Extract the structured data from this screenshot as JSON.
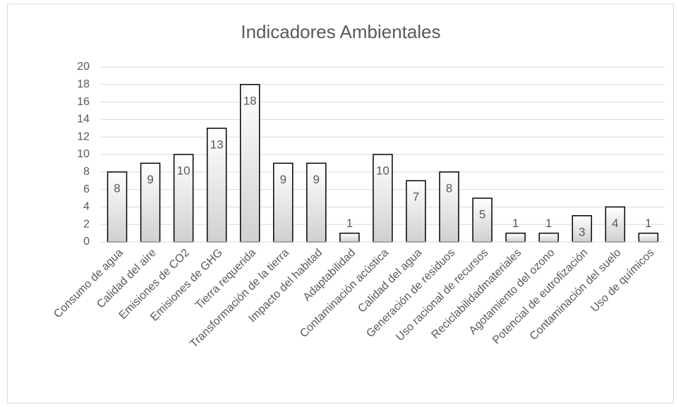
{
  "chart_data": {
    "type": "bar",
    "title": "Indicadores Ambientales",
    "categories": [
      "Consumo de agua",
      "Calidad del aire",
      "Emisiones de CO2",
      "Emisiones de GHG",
      "Tierra requerida",
      "Transformación de la tierra",
      "Impacto del habitad",
      "Adaptabilidad",
      "Contaminación acústica",
      "Calidad del agua",
      "Generación de residuos",
      "Uso racional de recursos",
      "Reciclabilidadmateriales",
      "Agotamiento del ozono",
      "Potencial de eutrofización",
      "Contaminación del suelo",
      "Uso de químicos"
    ],
    "values": [
      8,
      9,
      10,
      13,
      18,
      9,
      9,
      1,
      10,
      7,
      8,
      5,
      1,
      1,
      3,
      4,
      1
    ],
    "color": "#d0d0d0",
    "ylim": [
      0,
      20
    ],
    "yticks": [
      0,
      2,
      4,
      6,
      8,
      10,
      12,
      14,
      16,
      18,
      20
    ],
    "grid": true
  }
}
